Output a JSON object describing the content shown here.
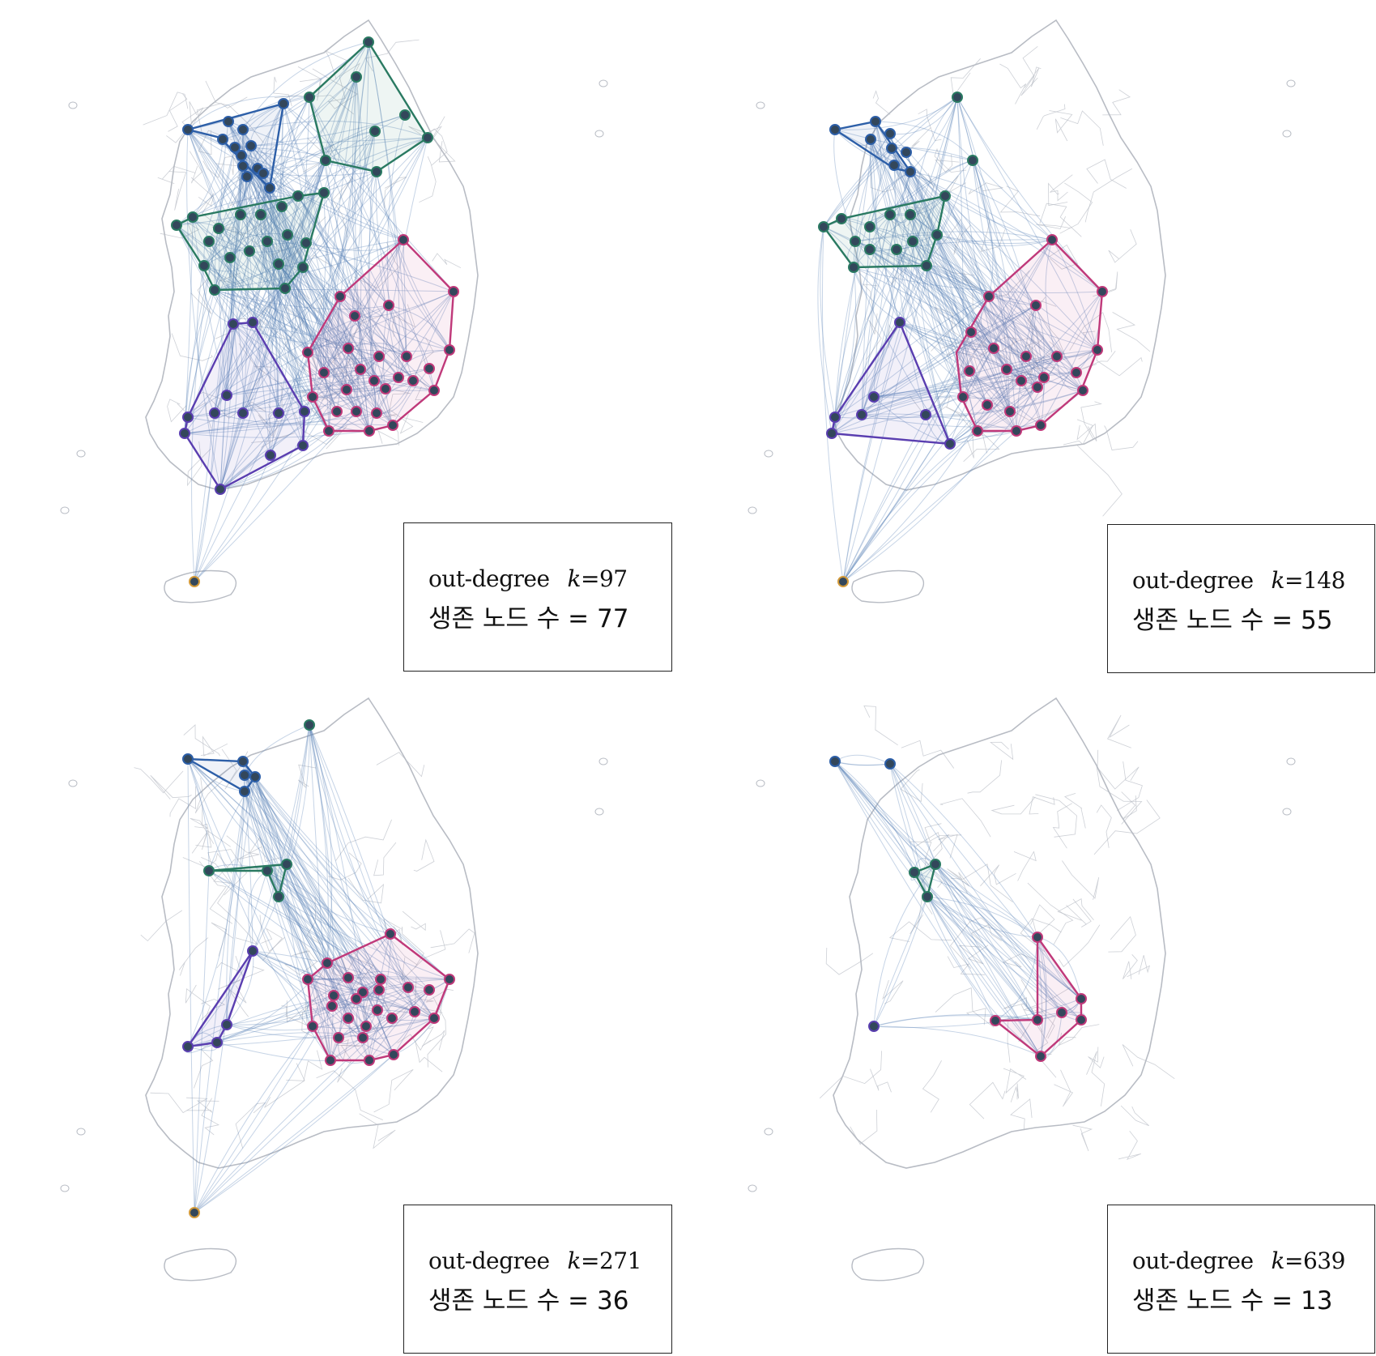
{
  "colors": {
    "map_border": "#b8bcc4",
    "edge": "#5b84b8",
    "node_fill": "#33475b",
    "cluster_seoul": "#2d5fa8",
    "cluster_gangwon": "#2a7a62",
    "cluster_chungcheong": "#2a7a62",
    "cluster_honam": "#5a3eb0",
    "cluster_yeongnam": "#c0397a",
    "cluster_jeju": "#d39a3a"
  },
  "panels": [
    {
      "metric_label": "out-degree",
      "k_symbol": "k",
      "k_value": "=97",
      "nodes_label": "생존 노드 수 = 77"
    },
    {
      "metric_label": "out-degree",
      "k_symbol": "k",
      "k_value": "=148",
      "nodes_label": "생존 노드 수 = 55"
    },
    {
      "metric_label": "out-degree",
      "k_symbol": "k",
      "k_value": "=271",
      "nodes_label": "생존 노드 수 = 36"
    },
    {
      "metric_label": "out-degree",
      "k_symbol": "k",
      "k_value": "=639",
      "nodes_label": "생존 노드 수 = 13"
    }
  ]
}
